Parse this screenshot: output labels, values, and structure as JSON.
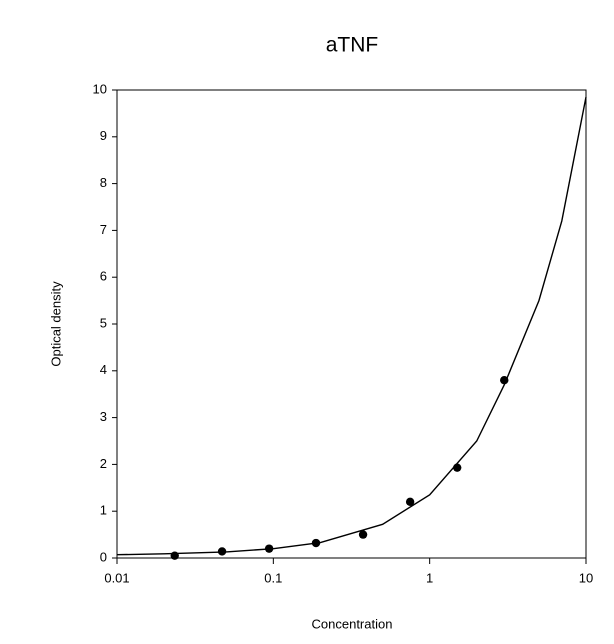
{
  "chart_data": {
    "type": "scatter",
    "title": "aTNF",
    "x_label": "Concentration",
    "y_label": "Optical density",
    "x_scale": "log",
    "xlim": [
      0.01,
      10
    ],
    "xticks": [
      0.01,
      0.1,
      1,
      10
    ],
    "ylim": [
      0,
      10
    ],
    "yticks": [
      0,
      1,
      2,
      3,
      4,
      5,
      6,
      7,
      8,
      9,
      10
    ],
    "grid": false,
    "series": [
      {
        "kind": "points",
        "color": "#000000",
        "x": [
          0.0234,
          0.047,
          0.094,
          0.1875,
          0.375,
          0.75,
          1.5,
          3
        ],
        "values": [
          0.05,
          0.14,
          0.2,
          0.32,
          0.5,
          1.2,
          1.93,
          3.8
        ]
      },
      {
        "kind": "line",
        "color": "#000000",
        "x": [
          0.01,
          0.02,
          0.05,
          0.1,
          0.2,
          0.5,
          1,
          2,
          3,
          5,
          7,
          10
        ],
        "values": [
          0.07,
          0.09,
          0.13,
          0.2,
          0.33,
          0.72,
          1.35,
          2.5,
          3.7,
          5.5,
          7.2,
          9.85
        ]
      }
    ]
  }
}
